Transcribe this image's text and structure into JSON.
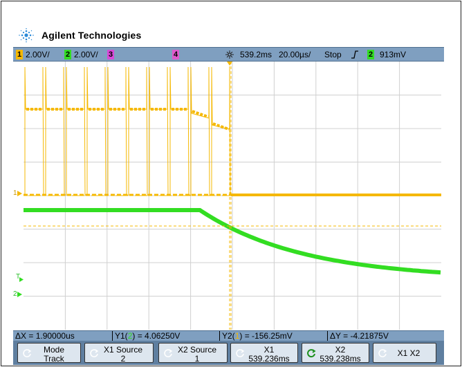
{
  "brand": {
    "name": "Agilent Technologies"
  },
  "topbar": {
    "ch1_num": "1",
    "ch1_scale": "2.00V/",
    "ch2_num": "2",
    "ch2_scale": "2.00V/",
    "ch3_num": "3",
    "ch4_num": "4",
    "time_pos": "539.2ms",
    "time_scale": "20.00µs/",
    "run_state": "Stop",
    "trig_src": "2",
    "trig_level": "913mV"
  },
  "markers": {
    "ch1": "1",
    "ch2": "2",
    "trigger": "T"
  },
  "measurements": {
    "dx": "ΔX = 1.90000us",
    "y1_pre": "Y1(",
    "y1_ch": "2",
    "y1_post": ") = 4.06250V",
    "y2_pre": "Y2(",
    "y2_ch": "1",
    "y2_post": ") = -156.25mV",
    "dy": "ΔY = -4.21875V"
  },
  "softkeys": [
    {
      "l1": "Mode",
      "l2": "Track"
    },
    {
      "l1": "X1 Source",
      "l2": "2"
    },
    {
      "l1": "X2 Source",
      "l2": "1"
    },
    {
      "l1": "X1",
      "l2": "539.236ms"
    },
    {
      "l1": "X2",
      "l2": "539.238ms"
    },
    {
      "label": "X1 X2"
    }
  ],
  "colors": {
    "ch1": "#f5b800",
    "ch2": "#33dd22",
    "ch3": "#d84ad8",
    "ch4": "#e05acc",
    "bar": "#7f9fc0"
  },
  "icons": {
    "logo": "spark-logo-icon",
    "softkey": "rotary-knob-icon",
    "trigger": "rising-edge-icon"
  }
}
